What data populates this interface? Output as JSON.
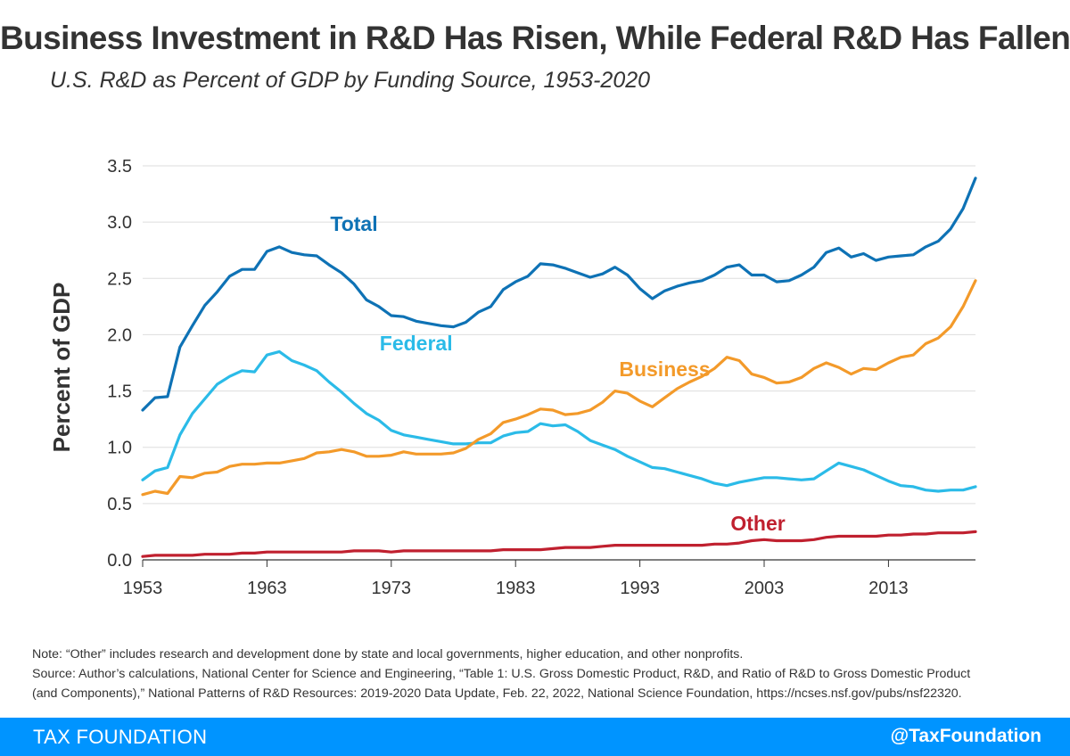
{
  "header": {
    "title": "Business Investment in R&D Has Risen, While Federal R&D Has Fallen",
    "subtitle": "U.S. R&D as Percent of GDP by Funding Source, 1953-2020"
  },
  "colors": {
    "total": "#0e72b5",
    "federal": "#2bbbe8",
    "business": "#f39a2a",
    "other": "#c0202f",
    "grid": "#dddddd",
    "footer": "#0094ff"
  },
  "chart_data": {
    "type": "line",
    "xlabel": "",
    "ylabel": "Percent of GDP",
    "xlim": [
      1953,
      2020
    ],
    "ylim": [
      0,
      3.5
    ],
    "x_ticks": [
      1953,
      1963,
      1973,
      1983,
      1993,
      2003,
      2013
    ],
    "y_ticks": [
      "0.0",
      "0.5",
      "1.0",
      "1.5",
      "2.0",
      "2.5",
      "3.0",
      "3.5"
    ],
    "grid": "horizontal",
    "legend": "direct labels",
    "x": [
      1953,
      1954,
      1955,
      1956,
      1957,
      1958,
      1959,
      1960,
      1961,
      1962,
      1963,
      1964,
      1965,
      1966,
      1967,
      1968,
      1969,
      1970,
      1971,
      1972,
      1973,
      1974,
      1975,
      1976,
      1977,
      1978,
      1979,
      1980,
      1981,
      1982,
      1983,
      1984,
      1985,
      1986,
      1987,
      1988,
      1989,
      1990,
      1991,
      1992,
      1993,
      1994,
      1995,
      1996,
      1997,
      1998,
      1999,
      2000,
      2001,
      2002,
      2003,
      2004,
      2005,
      2006,
      2007,
      2008,
      2009,
      2010,
      2011,
      2012,
      2013,
      2014,
      2015,
      2016,
      2017,
      2018,
      2019,
      2020
    ],
    "series": [
      {
        "name": "Total",
        "key": "total",
        "values": [
          1.33,
          1.44,
          1.45,
          1.89,
          2.08,
          2.26,
          2.38,
          2.52,
          2.58,
          2.58,
          2.74,
          2.78,
          2.73,
          2.71,
          2.7,
          2.62,
          2.55,
          2.45,
          2.31,
          2.25,
          2.17,
          2.16,
          2.12,
          2.1,
          2.08,
          2.07,
          2.11,
          2.2,
          2.25,
          2.4,
          2.47,
          2.52,
          2.63,
          2.62,
          2.59,
          2.55,
          2.51,
          2.54,
          2.6,
          2.53,
          2.41,
          2.32,
          2.39,
          2.43,
          2.46,
          2.48,
          2.53,
          2.6,
          2.62,
          2.53,
          2.53,
          2.47,
          2.48,
          2.53,
          2.6,
          2.73,
          2.77,
          2.69,
          2.72,
          2.66,
          2.69,
          2.7,
          2.71,
          2.78,
          2.83,
          2.94,
          3.12,
          3.39
        ]
      },
      {
        "name": "Federal",
        "key": "federal",
        "values": [
          0.71,
          0.79,
          0.82,
          1.11,
          1.3,
          1.43,
          1.56,
          1.63,
          1.68,
          1.67,
          1.82,
          1.85,
          1.77,
          1.73,
          1.68,
          1.58,
          1.49,
          1.39,
          1.3,
          1.24,
          1.15,
          1.11,
          1.09,
          1.07,
          1.05,
          1.03,
          1.03,
          1.04,
          1.04,
          1.1,
          1.13,
          1.14,
          1.21,
          1.19,
          1.2,
          1.14,
          1.06,
          1.02,
          0.98,
          0.92,
          0.87,
          0.82,
          0.81,
          0.78,
          0.75,
          0.72,
          0.68,
          0.66,
          0.69,
          0.71,
          0.73,
          0.73,
          0.72,
          0.71,
          0.72,
          0.79,
          0.86,
          0.83,
          0.8,
          0.75,
          0.7,
          0.66,
          0.65,
          0.62,
          0.61,
          0.62,
          0.62,
          0.65
        ]
      },
      {
        "name": "Business",
        "key": "business",
        "values": [
          0.58,
          0.61,
          0.59,
          0.74,
          0.73,
          0.77,
          0.78,
          0.83,
          0.85,
          0.85,
          0.86,
          0.86,
          0.88,
          0.9,
          0.95,
          0.96,
          0.98,
          0.96,
          0.92,
          0.92,
          0.93,
          0.96,
          0.94,
          0.94,
          0.94,
          0.95,
          0.99,
          1.07,
          1.12,
          1.22,
          1.25,
          1.29,
          1.34,
          1.33,
          1.29,
          1.3,
          1.33,
          1.4,
          1.5,
          1.48,
          1.41,
          1.36,
          1.44,
          1.52,
          1.58,
          1.63,
          1.7,
          1.8,
          1.77,
          1.65,
          1.62,
          1.57,
          1.58,
          1.62,
          1.7,
          1.75,
          1.71,
          1.65,
          1.7,
          1.69,
          1.75,
          1.8,
          1.82,
          1.92,
          1.97,
          2.07,
          2.25,
          2.48
        ]
      },
      {
        "name": "Other",
        "key": "other",
        "values": [
          0.03,
          0.04,
          0.04,
          0.04,
          0.04,
          0.05,
          0.05,
          0.05,
          0.06,
          0.06,
          0.07,
          0.07,
          0.07,
          0.07,
          0.07,
          0.07,
          0.07,
          0.08,
          0.08,
          0.08,
          0.07,
          0.08,
          0.08,
          0.08,
          0.08,
          0.08,
          0.08,
          0.08,
          0.08,
          0.09,
          0.09,
          0.09,
          0.09,
          0.1,
          0.11,
          0.11,
          0.11,
          0.12,
          0.13,
          0.13,
          0.13,
          0.13,
          0.13,
          0.13,
          0.13,
          0.13,
          0.14,
          0.14,
          0.15,
          0.17,
          0.18,
          0.17,
          0.17,
          0.17,
          0.18,
          0.2,
          0.21,
          0.21,
          0.21,
          0.21,
          0.22,
          0.22,
          0.23,
          0.23,
          0.24,
          0.24,
          0.24,
          0.25
        ]
      }
    ],
    "annotations": [
      {
        "series": "total",
        "text": "Total",
        "at_year": 1970,
        "at_value": 2.92
      },
      {
        "series": "federal",
        "text": "Federal",
        "at_year": 1975,
        "at_value": 1.86
      },
      {
        "series": "business",
        "text": "Business",
        "at_year": 1995,
        "at_value": 1.63
      },
      {
        "series": "other",
        "text": "Other",
        "at_year": 2002.5,
        "at_value": 0.26
      }
    ]
  },
  "notes": {
    "line1": "Note: “Other” includes research and development done by state and local governments, higher education, and other nonprofits.",
    "line2": "Source: Author’s calculations, National Center for Science and Engineering, “Table 1: U.S. Gross Domestic Product, R&D, and Ratio of R&D to Gross Domestic Product",
    "line3": "(and Components),” National Patterns of R&D Resources: 2019-2020 Data Update, Feb. 22, 2022, National Science Foundation, https://ncses.nsf.gov/pubs/nsf22320."
  },
  "footer": {
    "brand": "TAX FOUNDATION",
    "handle": "@TaxFoundation"
  }
}
